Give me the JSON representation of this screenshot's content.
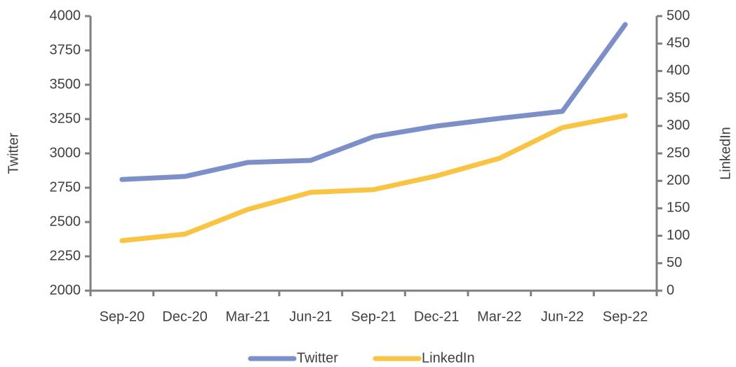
{
  "chart_data": {
    "type": "line",
    "categories": [
      "Sep-20",
      "Dec-20",
      "Mar-21",
      "Jun-21",
      "Sep-21",
      "Dec-21",
      "Mar-22",
      "Jun-22",
      "Sep-22"
    ],
    "series": [
      {
        "name": "Twitter",
        "color": "#7d8fc8",
        "values": [
          2810,
          2832,
          2934,
          2949,
          3122,
          3199,
          3255,
          3306,
          3939
        ]
      },
      {
        "name": "LinkedIn",
        "color": "#f9c443",
        "axis": "y2",
        "values": [
          91,
          103,
          148,
          179,
          184,
          209,
          241,
          297,
          319
        ]
      }
    ],
    "ylabel": "Twitter",
    "y2label": "LinkedIn",
    "ylim": [
      2000,
      4000
    ],
    "yticks": [
      2000,
      2250,
      2500,
      2750,
      3000,
      3250,
      3500,
      3750,
      4000
    ],
    "y2lim": [
      0,
      500
    ],
    "y2ticks": [
      0,
      50,
      100,
      150,
      200,
      250,
      300,
      350,
      400,
      450,
      500
    ],
    "legend": "bottom"
  }
}
